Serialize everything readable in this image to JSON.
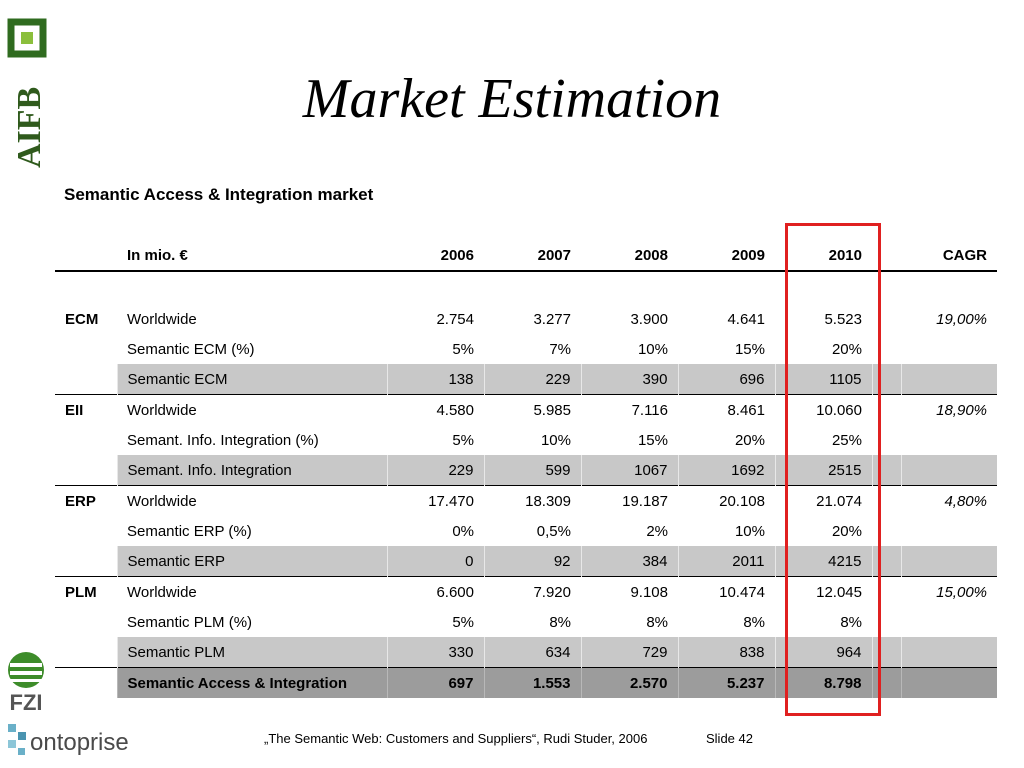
{
  "logos": {
    "aifb": "AIFB",
    "fzi": "FZI",
    "ontoprise": "ontoprise"
  },
  "title": "Market Estimation",
  "subtitle": "Semantic Access & Integration market",
  "table": {
    "unit_label": "In mio. €",
    "years": [
      "2006",
      "2007",
      "2008",
      "2009",
      "2010"
    ],
    "cagr_label": "CAGR",
    "sections": [
      {
        "category": "ECM",
        "rows": [
          {
            "label": "Worldwide",
            "values": [
              "2.754",
              "3.277",
              "3.900",
              "4.641",
              "5.523"
            ],
            "cagr": "19,00%"
          },
          {
            "label": "Semantic ECM (%)",
            "values": [
              "5%",
              "7%",
              "10%",
              "15%",
              "20%"
            ],
            "cagr": ""
          },
          {
            "label": "Semantic ECM",
            "values": [
              "138",
              "229",
              "390",
              "696",
              "1105"
            ],
            "cagr": ""
          }
        ]
      },
      {
        "category": "EII",
        "rows": [
          {
            "label": "Worldwide",
            "values": [
              "4.580",
              "5.985",
              "7.116",
              "8.461",
              "10.060"
            ],
            "cagr": "18,90%"
          },
          {
            "label": "Semant. Info. Integration (%)",
            "values": [
              "5%",
              "10%",
              "15%",
              "20%",
              "25%"
            ],
            "cagr": ""
          },
          {
            "label": "Semant. Info. Integration",
            "values": [
              "229",
              "599",
              "1067",
              "1692",
              "2515"
            ],
            "cagr": ""
          }
        ]
      },
      {
        "category": "ERP",
        "rows": [
          {
            "label": "Worldwide",
            "values": [
              "17.470",
              "18.309",
              "19.187",
              "20.108",
              "21.074"
            ],
            "cagr": "4,80%"
          },
          {
            "label": "Semantic ERP (%)",
            "values": [
              "0%",
              "0,5%",
              "2%",
              "10%",
              "20%"
            ],
            "cagr": ""
          },
          {
            "label": "Semantic ERP",
            "values": [
              "0",
              "92",
              "384",
              "2011",
              "4215"
            ],
            "cagr": ""
          }
        ]
      },
      {
        "category": "PLM",
        "rows": [
          {
            "label": "Worldwide",
            "values": [
              "6.600",
              "7.920",
              "9.108",
              "10.474",
              "12.045"
            ],
            "cagr": "15,00%"
          },
          {
            "label": "Semantic PLM (%)",
            "values": [
              "5%",
              "8%",
              "8%",
              "8%",
              "8%"
            ],
            "cagr": ""
          },
          {
            "label": "Semantic PLM",
            "values": [
              "330",
              "634",
              "729",
              "838",
              "964"
            ],
            "cagr": ""
          }
        ]
      }
    ],
    "total": {
      "label": "Semantic Access & Integration",
      "values": [
        "697",
        "1.553",
        "2.570",
        "5.237",
        "8.798"
      ]
    }
  },
  "highlight_color": "#e02020",
  "footer": {
    "citation": "„The Semantic Web: Customers and Suppliers“, Rudi Studer, 2006",
    "slide": "Slide 42"
  }
}
